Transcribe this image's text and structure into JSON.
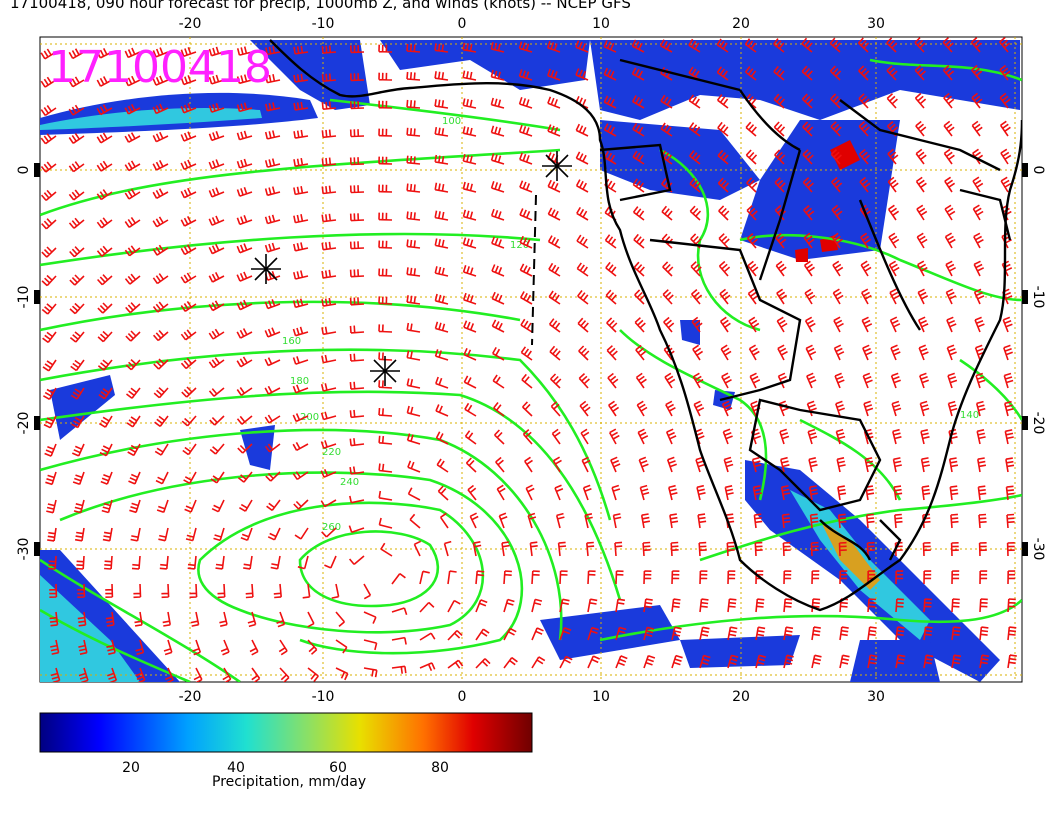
{
  "title": "17100418, 090 hour forecast for precip, 1000mb Z, and winds (knots) -- NCEP GFS",
  "date_stamp": "17100418",
  "map": {
    "lon_range": [
      -30,
      40
    ],
    "lat_range": [
      -40,
      10
    ],
    "x_ticks": [
      "-20",
      "-10",
      "0",
      "10",
      "20",
      "30"
    ],
    "top_x_ticks": [
      "-20",
      "-10",
      "0",
      "10",
      "20",
      "30"
    ],
    "y_ticks": [
      "0",
      "-10",
      "-20",
      "-30"
    ],
    "contour_labels": [
      "100",
      "120",
      "140",
      "160",
      "180",
      "200",
      "220",
      "240",
      "260"
    ],
    "colors": {
      "contour": "#22ee22",
      "wind_barb": "#ee1111",
      "grid": "#d8b000",
      "coast": "#000000",
      "stamp": "#ff20ff"
    }
  },
  "colorbar": {
    "ticks": [
      "20",
      "40",
      "60",
      "80"
    ],
    "label": "Precipitation, mm/day",
    "range": [
      0,
      100
    ]
  }
}
